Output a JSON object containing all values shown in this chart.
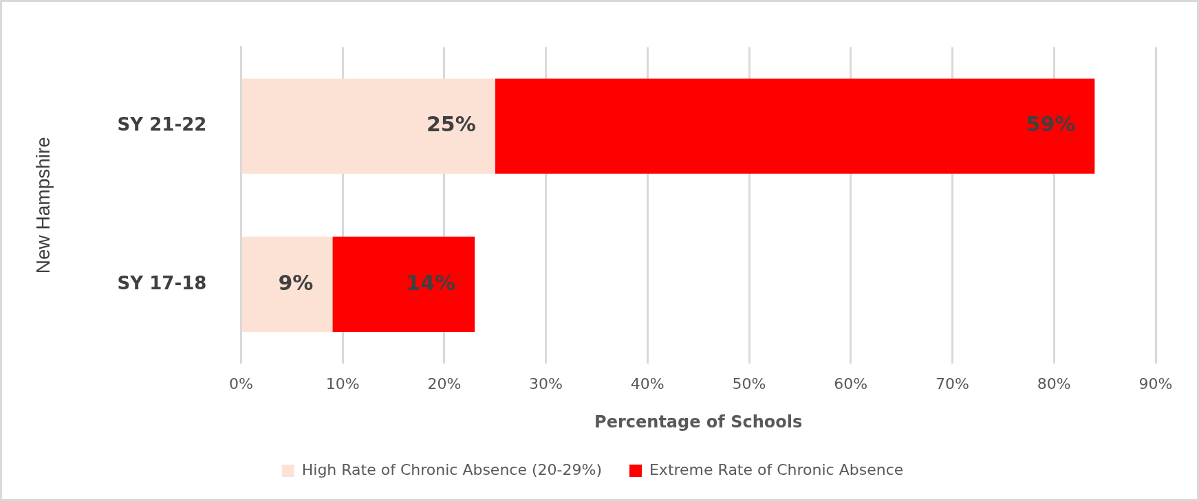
{
  "chart_data": {
    "type": "bar",
    "orientation": "horizontal",
    "stacked": true,
    "categories": [
      "SY 21-22",
      "SY 17-18"
    ],
    "ylabel": "New Hampshire",
    "xlabel": "Percentage of Schools",
    "series": [
      {
        "name": "High Rate of Chronic Absence (20-29%)",
        "color": "#fbe2d5",
        "values": [
          25,
          9
        ],
        "value_labels": [
          "25%",
          "9%"
        ]
      },
      {
        "name": "Extreme Rate of Chronic Absence",
        "color": "#ff0000",
        "values": [
          59,
          14
        ],
        "value_labels": [
          "59%",
          "14%"
        ]
      }
    ],
    "xlim": [
      0,
      90
    ],
    "xticks": [
      {
        "value": 0,
        "label": "0%"
      },
      {
        "value": 10,
        "label": "10%"
      },
      {
        "value": 20,
        "label": "20%"
      },
      {
        "value": 30,
        "label": "30%"
      },
      {
        "value": 40,
        "label": "40%"
      },
      {
        "value": 50,
        "label": "50%"
      },
      {
        "value": 60,
        "label": "60%"
      },
      {
        "value": 70,
        "label": "70%"
      },
      {
        "value": 80,
        "label": "80%"
      },
      {
        "value": 90,
        "label": "90%"
      }
    ],
    "grid": "x",
    "legend": "bottom"
  }
}
